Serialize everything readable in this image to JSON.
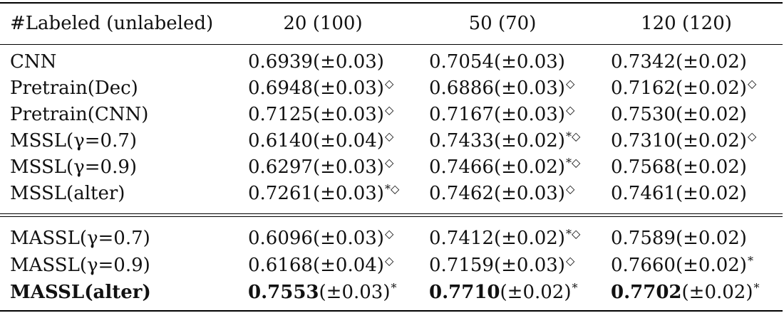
{
  "table": {
    "header": [
      "#Labeled (unlabeled)",
      "20 (100)",
      "50 (70)",
      "120 (120)"
    ],
    "group1": [
      {
        "label": "CNN",
        "cells": [
          {
            "value": "0.6939",
            "std": "(±0.03)",
            "mark": ""
          },
          {
            "value": "0.7054",
            "std": "(±0.03)",
            "mark": ""
          },
          {
            "value": "0.7342",
            "std": "(±0.02)",
            "mark": ""
          }
        ]
      },
      {
        "label": "Pretrain(Dec)",
        "cells": [
          {
            "value": "0.6948",
            "std": "(±0.03)",
            "mark": "◇"
          },
          {
            "value": "0.6886",
            "std": "(±0.03)",
            "mark": "◇"
          },
          {
            "value": "0.7162",
            "std": "(±0.02)",
            "mark": "◇"
          }
        ]
      },
      {
        "label": "Pretrain(CNN)",
        "cells": [
          {
            "value": "0.7125",
            "std": "(±0.03)",
            "mark": "◇"
          },
          {
            "value": "0.7167",
            "std": "(±0.03)",
            "mark": "◇"
          },
          {
            "value": "0.7530",
            "std": "(±0.02)",
            "mark": ""
          }
        ]
      },
      {
        "label": "MSSL(γ=0.7)",
        "cells": [
          {
            "value": "0.6140",
            "std": "(±0.04)",
            "mark": "◇"
          },
          {
            "value": "0.7433",
            "std": "(±0.02)",
            "mark": "*◇"
          },
          {
            "value": "0.7310",
            "std": "(±0.02)",
            "mark": "◇"
          }
        ]
      },
      {
        "label": "MSSL(γ=0.9)",
        "cells": [
          {
            "value": "0.6297",
            "std": "(±0.03)",
            "mark": "◇"
          },
          {
            "value": "0.7466",
            "std": "(±0.02)",
            "mark": "*◇"
          },
          {
            "value": "0.7568",
            "std": "(±0.02)",
            "mark": ""
          }
        ]
      },
      {
        "label": "MSSL(alter)",
        "cells": [
          {
            "value": "0.7261",
            "std": "(±0.03)",
            "mark": "*◇"
          },
          {
            "value": "0.7462",
            "std": "(±0.03)",
            "mark": "◇"
          },
          {
            "value": "0.7461",
            "std": "(±0.02)",
            "mark": ""
          }
        ]
      }
    ],
    "group2": [
      {
        "label": "MASSL(γ=0.7)",
        "cells": [
          {
            "value": "0.6096",
            "std": "(±0.03)",
            "mark": "◇"
          },
          {
            "value": "0.7412",
            "std": "(±0.02)",
            "mark": "*◇"
          },
          {
            "value": "0.7589",
            "std": "(±0.02)",
            "mark": ""
          }
        ]
      },
      {
        "label": "MASSL(γ=0.9)",
        "cells": [
          {
            "value": "0.6168",
            "std": "(±0.04)",
            "mark": "◇"
          },
          {
            "value": "0.7159",
            "std": "(±0.03)",
            "mark": "◇"
          },
          {
            "value": "0.7660",
            "std": "(±0.02)",
            "mark": "*"
          }
        ]
      },
      {
        "label": "MASSL(alter)",
        "bold": true,
        "cells": [
          {
            "value": "0.7553",
            "std": "(±0.03)",
            "mark": "*"
          },
          {
            "value": "0.7710",
            "std": "(±0.02)",
            "mark": "*"
          },
          {
            "value": "0.7702",
            "std": "(±0.02)",
            "mark": "*"
          }
        ]
      }
    ]
  }
}
